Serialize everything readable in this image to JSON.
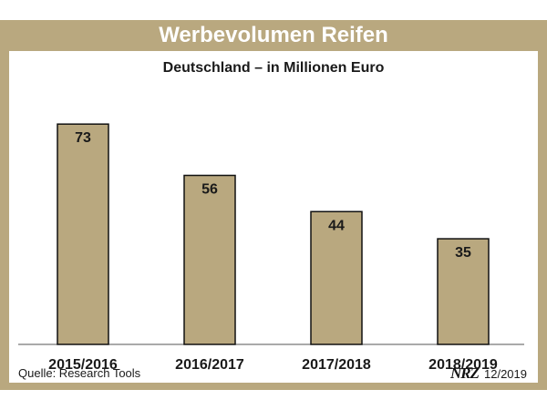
{
  "header": {
    "title": "Werbevolumen Reifen",
    "subtitle": "Deutschland – in Millionen Euro"
  },
  "footer": {
    "source": "Quelle: Research Tools",
    "logo": "NRZ",
    "date": "12/2019"
  },
  "colors": {
    "frame": "#b9a87f",
    "bar": "#b9a87f"
  },
  "chart_data": {
    "type": "bar",
    "title": "Werbevolumen Reifen",
    "subtitle": "Deutschland – in Millionen Euro",
    "categories": [
      "2015/2016",
      "2016/2017",
      "2017/2018",
      "2018/2019"
    ],
    "values": [
      73,
      56,
      44,
      35
    ],
    "xlabel": "",
    "ylabel": "",
    "ylim": [
      0,
      80
    ],
    "grid": false,
    "legend": "none"
  }
}
